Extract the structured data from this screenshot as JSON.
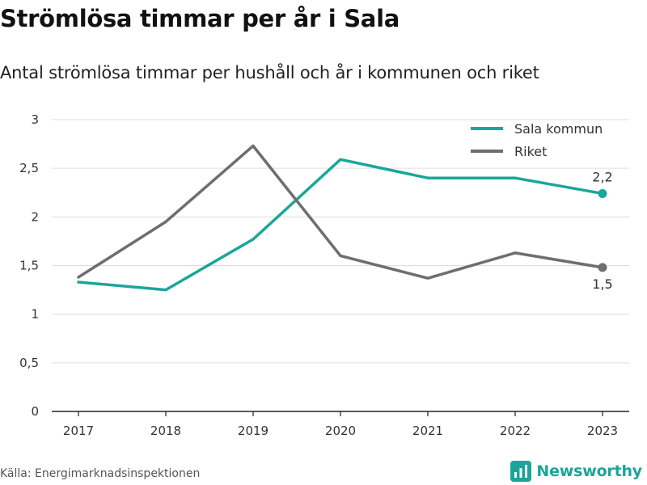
{
  "title": "Strömlösa timmar per år i Sala",
  "subtitle": "Antal strömlösa timmar per hushåll och år i kommunen och riket",
  "source": "Källa: Energimarknadsinspektionen",
  "brand": {
    "name": "Newsworthy",
    "icon": "newsworthy-logo-icon",
    "color": "#1aa69a"
  },
  "chart_data": {
    "type": "line",
    "x": [
      "2017",
      "2018",
      "2019",
      "2020",
      "2021",
      "2022",
      "2023"
    ],
    "ylim": [
      0,
      3
    ],
    "yticks": [
      0,
      0.5,
      1,
      1.5,
      2,
      2.5,
      3
    ],
    "ytick_labels": [
      "0",
      "0,5",
      "1",
      "1,5",
      "2",
      "2,5",
      "3"
    ],
    "grid": true,
    "legend_position": "top-right",
    "series": [
      {
        "name": "Sala kommun",
        "color": "#1aa69a",
        "values": [
          1.33,
          1.25,
          1.77,
          2.59,
          2.4,
          2.4,
          2.24
        ],
        "end_label": "2,2"
      },
      {
        "name": "Riket",
        "color": "#6d6d72",
        "values": [
          1.38,
          1.95,
          2.73,
          1.6,
          1.37,
          1.63,
          1.48
        ],
        "end_label": "1,5"
      }
    ]
  }
}
